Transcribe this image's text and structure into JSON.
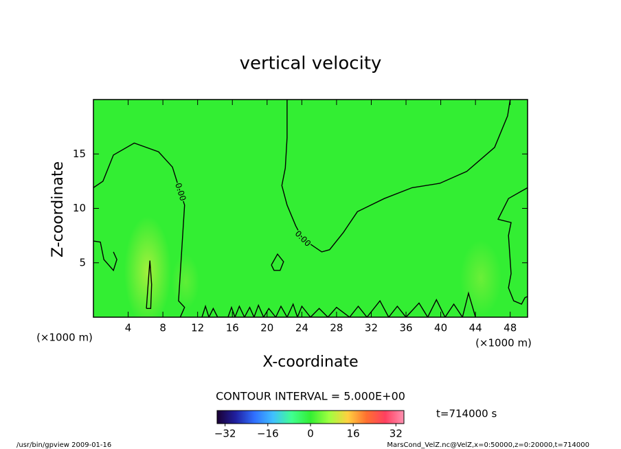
{
  "chart_data": {
    "type": "contour",
    "title": "vertical velocity",
    "xlabel": "X-coordinate",
    "ylabel": "Z-coordinate",
    "x_unit": "(×1000 m)",
    "xlim": [
      0,
      50
    ],
    "ylim": [
      0,
      20
    ],
    "xticks": [
      4,
      8,
      12,
      16,
      20,
      24,
      28,
      32,
      36,
      40,
      44,
      48
    ],
    "yticks": [
      5,
      10,
      15
    ],
    "contour_interval": "CONTOUR INTERVAL = 5.000E+00",
    "time_label": "t=714000 s",
    "colormap": [
      "#1a0033",
      "#2020a0",
      "#3070ff",
      "#40c0ff",
      "#40ff90",
      "#33ee33",
      "#a0ff40",
      "#ffd040",
      "#ff7030",
      "#ff4060",
      "#ff90b0"
    ],
    "clim": [
      -35,
      35
    ],
    "cbar_ticks": [
      {
        "value": -32,
        "label": "−32"
      },
      {
        "value": -16,
        "label": "−16"
      },
      0,
      16,
      32
    ],
    "contours": [
      {
        "level": 0,
        "label": "0.00",
        "x": [
          0,
          1.1,
          2.3,
          4.7,
          7.5,
          9.1,
          10,
          10.5,
          10.2,
          10,
          9.8,
          10.5,
          10
        ],
        "z": [
          11.9,
          12.5,
          14.9,
          16,
          15.2,
          13.8,
          11.5,
          10.3,
          6.5,
          4,
          1.5,
          0.9,
          0
        ]
      },
      {
        "level": 0,
        "label": "0.00",
        "x": [
          22.3,
          22.3,
          22.1,
          21.7,
          22.3,
          23.3,
          24.1,
          26.3,
          27.2,
          28.8,
          30.4,
          33.5,
          36.7,
          39.9,
          43,
          46.2,
          47.7,
          48
        ],
        "z": [
          20,
          16.5,
          13.7,
          12.1,
          10.3,
          8.4,
          7.2,
          6,
          6.2,
          7.8,
          9.7,
          10.9,
          11.9,
          12.3,
          13.4,
          15.6,
          18.5,
          20
        ]
      },
      {
        "level": 0,
        "x": [
          50,
          47.8,
          46.6,
          48.1,
          47.8,
          48.1,
          47.8,
          48.4,
          49.3,
          49.7,
          50
        ],
        "z": [
          11.9,
          10.9,
          9,
          8.7,
          7.5,
          4,
          2.7,
          1.5,
          1.2,
          1.8,
          1.9
        ]
      },
      {
        "level": 0,
        "x": [
          0,
          0.8,
          1.2,
          2.3,
          2.7,
          2.3
        ],
        "z": [
          7,
          6.9,
          5.3,
          4.3,
          5.3,
          6
        ]
      },
      {
        "level": 0,
        "x": [
          20.5,
          21.2,
          21.9,
          21.5,
          20.8,
          20.5
        ],
        "z": [
          4.8,
          5.8,
          5.1,
          4.3,
          4.3,
          4.8
        ]
      },
      {
        "level": 5,
        "x": [
          6.1,
          6.3,
          6.5,
          6.7,
          6.6,
          6.1
        ],
        "z": [
          0.8,
          3,
          5.2,
          3,
          0.8,
          0.8
        ]
      },
      {
        "level": 0,
        "x": [
          12.5,
          12.9,
          13.3,
          13.8,
          14.3,
          15.5,
          15.9,
          16.3,
          16.8,
          17.4,
          18,
          18.5,
          19,
          19.6,
          20.2,
          21,
          21.6,
          22.3,
          23,
          23.5,
          24,
          25,
          26,
          27,
          28,
          29.5,
          30.5,
          31.5,
          33,
          34,
          35,
          36,
          37.5,
          38.5,
          39.5,
          40.5,
          41.5,
          42.5,
          43.2,
          44
        ],
        "z": [
          0,
          1.0,
          0,
          0.8,
          0,
          0,
          0.9,
          0,
          1.0,
          0,
          0.9,
          0,
          1.1,
          0,
          0.8,
          0,
          1.0,
          0,
          1.2,
          0,
          1.0,
          0,
          0.8,
          0,
          0.9,
          0,
          1.0,
          0,
          1.5,
          0,
          1.0,
          0,
          1.3,
          0,
          1.6,
          0,
          1.2,
          0,
          2.2,
          0
        ]
      }
    ],
    "footer_left": "/usr/bin/gpview  2009-01-16",
    "footer_right": "MarsCond_VelZ.nc@VelZ,x=0:50000,z=0:20000,t=714000"
  }
}
